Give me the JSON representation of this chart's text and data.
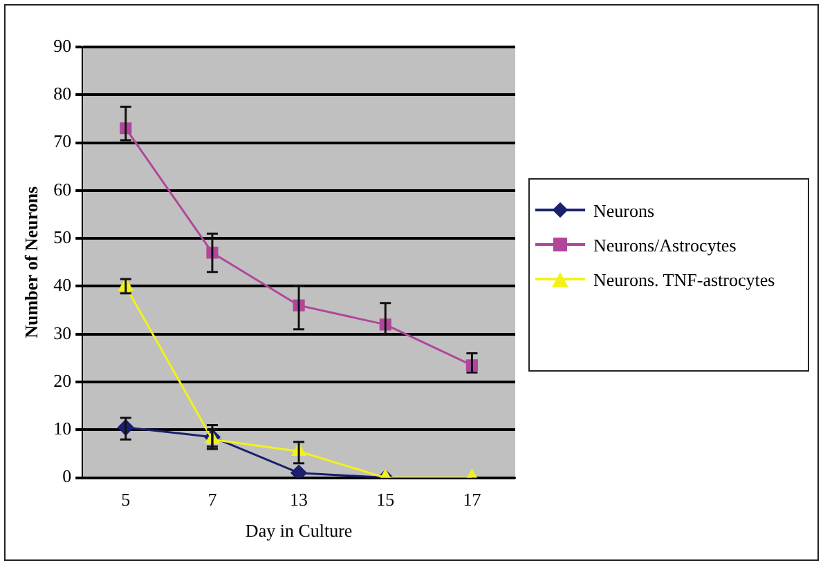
{
  "chart_data": {
    "type": "line",
    "xlabel": "Day in Culture",
    "ylabel": "Number of Neurons",
    "categories": [
      "5",
      "7",
      "13",
      "15",
      "17"
    ],
    "series": [
      {
        "name": "Neurons",
        "color": "#1a1f6e",
        "marker": "diamond",
        "values": [
          10.5,
          8.5,
          1,
          0,
          null
        ],
        "errors": [
          [
            8,
            12.5
          ],
          [
            6.5,
            11
          ],
          null,
          null,
          null
        ]
      },
      {
        "name": "Neurons/Astrocytes",
        "color": "#b0479a",
        "marker": "square",
        "values": [
          73,
          47,
          36,
          32,
          23.5
        ],
        "errors": [
          [
            70.5,
            77.5
          ],
          [
            43,
            51
          ],
          [
            31,
            40
          ],
          [
            30,
            36.5
          ],
          [
            22,
            26
          ]
        ]
      },
      {
        "name": "Neurons. TNF-astrocytes",
        "color": "#f2f21a",
        "marker": "triangle",
        "values": [
          40,
          8,
          5.5,
          0,
          0
        ],
        "errors": [
          [
            38.5,
            41.5
          ],
          [
            6,
            10
          ],
          [
            3,
            7.5
          ],
          null,
          null
        ]
      }
    ],
    "ylim": [
      0,
      90
    ],
    "yticks": [
      0,
      10,
      20,
      30,
      40,
      50,
      60,
      70,
      80,
      90
    ],
    "grid": "y",
    "legend": "right"
  }
}
